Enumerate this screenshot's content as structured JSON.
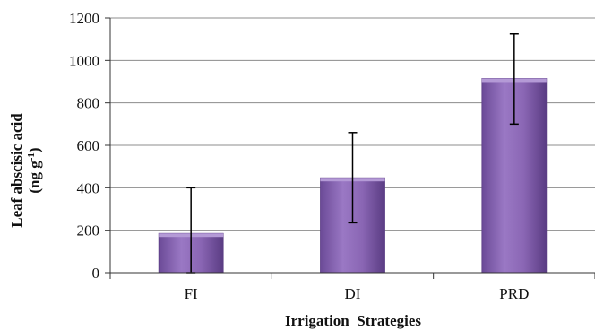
{
  "chart_data": {
    "type": "bar",
    "categories": [
      "FI",
      "DI",
      "PRD"
    ],
    "series": [
      {
        "values": [
          185,
          447,
          915
        ]
      }
    ],
    "error_bars": {
      "lower": [
        0,
        235,
        700
      ],
      "upper": [
        400,
        660,
        1125
      ]
    },
    "xlabel": "Irrigation  Strategies",
    "ylabel_line1": "Leaf abscisic acid",
    "ylabel_line2_pre": "(ng g",
    "ylabel_line2_sup": "-1",
    "ylabel_line2_post": ")",
    "ylim": [
      0,
      1200
    ],
    "yticks": [
      "0",
      "200",
      "400",
      "600",
      "800",
      "1000",
      "1200"
    ],
    "grid": true,
    "bar_color": "#8a66b4",
    "bar_dark": "#5d3f86"
  }
}
